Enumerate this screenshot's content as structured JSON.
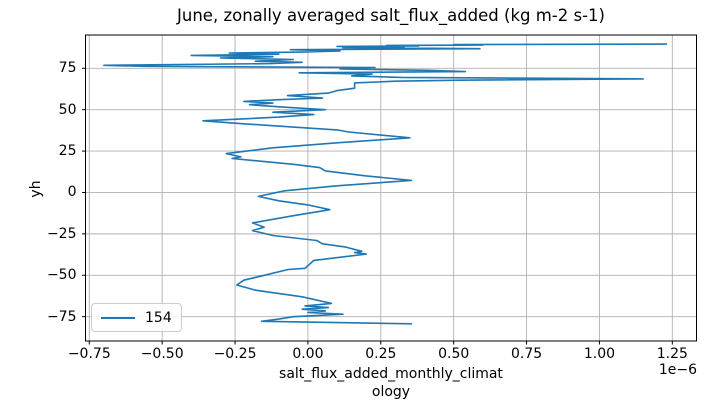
{
  "figure": {
    "title": "June, zonally averaged salt_flux_added (kg m-2 s-1)"
  },
  "chart_data": {
    "type": "line",
    "title": "June, zonally averaged salt_flux_added (kg m-2 s-1)",
    "xlabel": "salt_flux_added_monthly_climatology",
    "xlabel_line1": "salt_flux_added_monthly_climat",
    "xlabel_line2": "ology",
    "ylabel": "yh",
    "offset_label": "1e−6",
    "x_scale_factor": 1e-06,
    "grid": true,
    "legend_position": "lower left",
    "xlim": [
      -0.763,
      1.333
    ],
    "ylim": [
      -89.7,
      95.1
    ],
    "x_ticks": [
      -0.75,
      -0.5,
      -0.25,
      0,
      0.25,
      0.5,
      0.75,
      1.0,
      1.25
    ],
    "x_tick_labels": [
      "−0.75",
      "−0.50",
      "−0.25",
      "0.00",
      "0.25",
      "0.50",
      "0.75",
      "1.00",
      "1.25"
    ],
    "y_ticks": [
      75,
      50,
      25,
      0,
      -25,
      -50,
      -75
    ],
    "y_tick_labels": [
      "75",
      "50",
      "25",
      "0",
      "−25",
      "−50",
      "−75"
    ],
    "colors": {
      "line": "#1f77b4",
      "grid": "#b0b0b0",
      "spine": "#000000",
      "text": "#000000"
    },
    "series": [
      {
        "name": "154",
        "color": "#1f77b4",
        "points": [
          [
            0.355,
            -79.3
          ],
          [
            -0.159,
            -77.8
          ],
          [
            -0.1,
            -76.5
          ],
          [
            -0.05,
            -75.0
          ],
          [
            0.12,
            -73.5
          ],
          [
            0.0,
            -72.5
          ],
          [
            0.06,
            -71.5
          ],
          [
            -0.02,
            -70.5
          ],
          [
            0.07,
            -69.5
          ],
          [
            -0.01,
            -68.5
          ],
          [
            0.081,
            -67.0
          ],
          [
            -0.02,
            -63.0
          ],
          [
            -0.18,
            -59.0
          ],
          [
            -0.244,
            -55.9
          ],
          [
            -0.22,
            -53.0
          ],
          [
            -0.15,
            -50.0
          ],
          [
            -0.068,
            -46.5
          ],
          [
            -0.01,
            -45.8
          ],
          [
            0.02,
            -41.0
          ],
          [
            0.2,
            -37.2
          ],
          [
            0.16,
            -36.3
          ],
          [
            0.185,
            -35.5
          ],
          [
            0.13,
            -33.0
          ],
          [
            0.05,
            -31.0
          ],
          [
            0.03,
            -29.0
          ],
          [
            -0.12,
            -26.0
          ],
          [
            -0.19,
            -23.0
          ],
          [
            -0.15,
            -21.0
          ],
          [
            -0.19,
            -18.4
          ],
          [
            -0.05,
            -14.0
          ],
          [
            0.075,
            -10.4
          ],
          [
            0.0,
            -7.5
          ],
          [
            -0.1,
            -5.0
          ],
          [
            -0.17,
            -2.4
          ],
          [
            -0.08,
            1.0
          ],
          [
            0.1,
            4.0
          ],
          [
            0.355,
            7.3
          ],
          [
            0.2,
            10.0
          ],
          [
            0.06,
            13.0
          ],
          [
            0.04,
            15.0
          ],
          [
            -0.05,
            17.0
          ],
          [
            -0.26,
            20.5
          ],
          [
            -0.23,
            21.5
          ],
          [
            -0.28,
            23.5
          ],
          [
            -0.12,
            27.0
          ],
          [
            0.1,
            30.0
          ],
          [
            0.35,
            33.0
          ],
          [
            0.14,
            36.5
          ],
          [
            0.1,
            37.8
          ],
          [
            -0.05,
            39.5
          ],
          [
            -0.22,
            41.5
          ],
          [
            -0.36,
            43.3
          ],
          [
            -0.1,
            45.5
          ],
          [
            0.02,
            47.0
          ],
          [
            -0.12,
            48.5
          ],
          [
            0.06,
            50.0
          ],
          [
            -0.08,
            51.5
          ],
          [
            -0.2,
            53.0
          ],
          [
            -0.12,
            54.0
          ],
          [
            -0.22,
            55.0
          ],
          [
            -0.1,
            56.0
          ],
          [
            0.05,
            57.0
          ],
          [
            -0.07,
            58.5
          ],
          [
            0.07,
            60.0
          ],
          [
            0.1,
            61.5
          ],
          [
            0.16,
            63.0
          ],
          [
            0.16,
            66.2
          ],
          [
            0.3,
            67.2
          ],
          [
            0.52,
            67.8
          ],
          [
            1.15,
            68.6
          ],
          [
            0.32,
            69.5
          ],
          [
            0.15,
            70.4
          ],
          [
            0.22,
            71.5
          ],
          [
            -0.03,
            72.3
          ],
          [
            0.54,
            73.0
          ],
          [
            0.41,
            73.8
          ],
          [
            0.11,
            74.6
          ],
          [
            0.23,
            75.4
          ],
          [
            -0.56,
            76.2
          ],
          [
            -0.7,
            76.8
          ],
          [
            -0.13,
            77.8
          ],
          [
            -0.02,
            78.6
          ],
          [
            -0.18,
            79.3
          ],
          [
            -0.05,
            80.3
          ],
          [
            -0.3,
            81.2
          ],
          [
            -0.12,
            82.0
          ],
          [
            -0.4,
            82.8
          ],
          [
            -0.1,
            83.5
          ],
          [
            -0.27,
            84.2
          ],
          [
            -0.02,
            84.8
          ],
          [
            0.11,
            85.5
          ],
          [
            -0.06,
            86.2
          ],
          [
            0.59,
            86.8
          ],
          [
            0.12,
            87.4
          ],
          [
            0.33,
            87.8
          ],
          [
            0.1,
            88.2
          ],
          [
            0.38,
            88.5
          ],
          [
            0.27,
            88.8
          ],
          [
            0.6,
            89.0
          ],
          [
            0.5,
            89.3
          ],
          [
            1.23,
            89.6
          ]
        ]
      }
    ]
  }
}
